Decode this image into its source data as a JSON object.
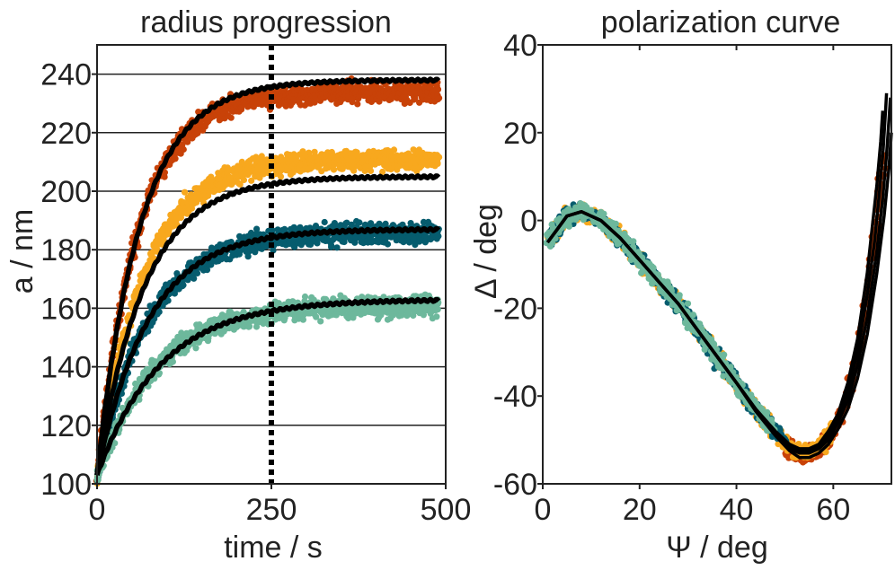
{
  "colors": {
    "orange_red": "#c84208",
    "amber": "#f8a81e",
    "teal": "#065c6e",
    "mint": "#6db89c",
    "fit": "#000000",
    "axis": "#222222"
  },
  "chart_data": [
    {
      "type": "scatter",
      "title": "radius progression",
      "xlabel": "time / s",
      "ylabel": "a / nm",
      "xlim": [
        0,
        500
      ],
      "ylim": [
        100,
        250
      ],
      "xticks": [
        "0",
        "250",
        "500"
      ],
      "yticks": [
        "100",
        "120",
        "140",
        "160",
        "180",
        "200",
        "220",
        "240"
      ],
      "grid": "horizontal",
      "vline": {
        "x": 250,
        "style": "dotted"
      },
      "series": [
        {
          "name": "orange-red",
          "color": "#c84208",
          "data_a0": 102,
          "data_amax": 234,
          "data_tau": 58,
          "noise": 3,
          "fit_a0": 103,
          "fit_amax": 238,
          "fit_tau": 62
        },
        {
          "name": "amber",
          "color": "#f8a81e",
          "data_a0": 102,
          "data_amax": 211,
          "data_tau": 66,
          "noise": 3,
          "fit_a0": 103,
          "fit_amax": 205,
          "fit_tau": 68
        },
        {
          "name": "teal",
          "color": "#065c6e",
          "data_a0": 102,
          "data_amax": 186,
          "data_tau": 72,
          "noise": 3,
          "fit_a0": 103,
          "fit_amax": 187,
          "fit_tau": 74
        },
        {
          "name": "mint",
          "color": "#6db89c",
          "data_a0": 102,
          "data_amax": 161,
          "data_tau": 82,
          "noise": 3,
          "fit_a0": 103,
          "fit_amax": 163,
          "fit_tau": 92
        }
      ]
    },
    {
      "type": "scatter",
      "title": "polarization curve",
      "xlabel": "Ψ / deg",
      "ylabel": "Δ / deg",
      "xlim": [
        0,
        72
      ],
      "ylim": [
        -60,
        40
      ],
      "xticks": [
        "0",
        "20",
        "40",
        "60"
      ],
      "yticks": [
        "-60",
        "-40",
        "-20",
        "0",
        "20",
        "40"
      ],
      "grid": "none",
      "fit_curves": [
        [
          [
            1,
            -5
          ],
          [
            3,
            -2
          ],
          [
            5,
            1
          ],
          [
            8,
            2
          ],
          [
            12,
            0
          ],
          [
            16,
            -4
          ],
          [
            20,
            -9
          ],
          [
            24,
            -14
          ],
          [
            28,
            -19
          ],
          [
            32,
            -25
          ],
          [
            36,
            -31
          ],
          [
            40,
            -37
          ],
          [
            44,
            -43
          ],
          [
            48,
            -48
          ],
          [
            51,
            -51
          ],
          [
            53,
            -52
          ],
          [
            55,
            -52
          ],
          [
            57,
            -51
          ],
          [
            59,
            -48
          ],
          [
            61,
            -44
          ],
          [
            63,
            -37
          ],
          [
            65,
            -27
          ],
          [
            67,
            -12
          ],
          [
            68,
            -2
          ],
          [
            69,
            8
          ],
          [
            69.8,
            18
          ],
          [
            70.2,
            25
          ]
        ],
        [
          [
            1,
            -5
          ],
          [
            3,
            -2
          ],
          [
            5,
            1
          ],
          [
            8,
            2
          ],
          [
            12,
            0
          ],
          [
            16,
            -4
          ],
          [
            20,
            -9
          ],
          [
            24,
            -14
          ],
          [
            28,
            -19
          ],
          [
            32,
            -25
          ],
          [
            36,
            -31
          ],
          [
            40,
            -37
          ],
          [
            44,
            -43
          ],
          [
            48,
            -48
          ],
          [
            51,
            -51.5
          ],
          [
            53,
            -52.5
          ],
          [
            55,
            -52.5
          ],
          [
            57,
            -51.5
          ],
          [
            59,
            -49
          ],
          [
            61,
            -45
          ],
          [
            63,
            -39
          ],
          [
            65,
            -30
          ],
          [
            67,
            -17
          ],
          [
            68.5,
            -5
          ],
          [
            69.5,
            6
          ],
          [
            70.3,
            16
          ],
          [
            70.8,
            25
          ],
          [
            71,
            29
          ]
        ],
        [
          [
            1,
            -5
          ],
          [
            3,
            -2
          ],
          [
            5,
            1
          ],
          [
            8,
            2
          ],
          [
            12,
            0
          ],
          [
            16,
            -4
          ],
          [
            20,
            -9
          ],
          [
            24,
            -14
          ],
          [
            28,
            -19
          ],
          [
            32,
            -25
          ],
          [
            36,
            -31
          ],
          [
            40,
            -37
          ],
          [
            44,
            -43
          ],
          [
            48,
            -48.5
          ],
          [
            51,
            -52
          ],
          [
            53,
            -53
          ],
          [
            55,
            -53
          ],
          [
            57,
            -52
          ],
          [
            59,
            -50
          ],
          [
            61,
            -46
          ],
          [
            63,
            -41
          ],
          [
            65,
            -33
          ],
          [
            67,
            -22
          ],
          [
            69,
            -7
          ],
          [
            70.2,
            5
          ],
          [
            71,
            15
          ],
          [
            71.5,
            23
          ],
          [
            71.8,
            28
          ]
        ],
        [
          [
            1,
            -5
          ],
          [
            3,
            -2
          ],
          [
            5,
            1
          ],
          [
            8,
            2
          ],
          [
            12,
            0
          ],
          [
            16,
            -4
          ],
          [
            20,
            -9
          ],
          [
            24,
            -14
          ],
          [
            28,
            -19
          ],
          [
            32,
            -25
          ],
          [
            36,
            -31
          ],
          [
            40,
            -37
          ],
          [
            44,
            -43.5
          ],
          [
            48,
            -49
          ],
          [
            51,
            -52.5
          ],
          [
            53,
            -54
          ],
          [
            55,
            -54
          ],
          [
            57,
            -53
          ],
          [
            59,
            -51
          ],
          [
            61,
            -47.5
          ],
          [
            63,
            -43
          ],
          [
            65,
            -36
          ],
          [
            67,
            -26
          ],
          [
            69,
            -12
          ],
          [
            70.5,
            1
          ],
          [
            71.5,
            12
          ],
          [
            72,
            20
          ]
        ]
      ],
      "point_clouds": [
        {
          "name": "orange-red",
          "color": "#c84208",
          "psi_range": [
            50,
            72
          ]
        },
        {
          "name": "amber",
          "color": "#f8a81e",
          "psi_range": [
            1,
            60
          ]
        },
        {
          "name": "teal",
          "color": "#065c6e",
          "psi_range": [
            1,
            50
          ]
        },
        {
          "name": "mint",
          "color": "#6db89c",
          "psi_range": [
            1,
            48
          ]
        }
      ]
    }
  ]
}
